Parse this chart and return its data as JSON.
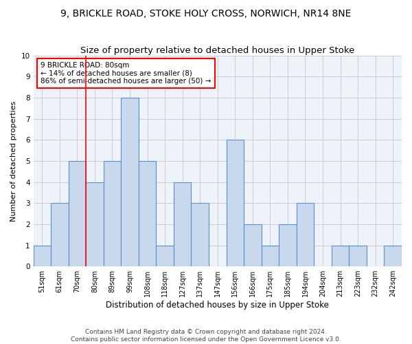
{
  "title1": "9, BRICKLE ROAD, STOKE HOLY CROSS, NORWICH, NR14 8NE",
  "title2": "Size of property relative to detached houses in Upper Stoke",
  "xlabel": "Distribution of detached houses by size in Upper Stoke",
  "ylabel": "Number of detached properties",
  "categories": [
    "51sqm",
    "61sqm",
    "70sqm",
    "80sqm",
    "89sqm",
    "99sqm",
    "108sqm",
    "118sqm",
    "127sqm",
    "137sqm",
    "147sqm",
    "156sqm",
    "166sqm",
    "175sqm",
    "185sqm",
    "194sqm",
    "204sqm",
    "213sqm",
    "223sqm",
    "232sqm",
    "242sqm"
  ],
  "values": [
    1,
    3,
    5,
    4,
    5,
    8,
    5,
    1,
    4,
    3,
    0,
    6,
    2,
    1,
    2,
    3,
    0,
    1,
    1,
    0,
    1
  ],
  "bar_color": "#c9d9ed",
  "bar_edge_color": "#5b8fc9",
  "annotation_text": "9 BRICKLE ROAD: 80sqm\n← 14% of detached houses are smaller (8)\n86% of semi-detached houses are larger (50) →",
  "annotation_box_color": "white",
  "annotation_box_edge_color": "red",
  "vline_color": "red",
  "ylim": [
    0,
    10
  ],
  "yticks": [
    0,
    1,
    2,
    3,
    4,
    5,
    6,
    7,
    8,
    9,
    10
  ],
  "footer1": "Contains HM Land Registry data © Crown copyright and database right 2024.",
  "footer2": "Contains public sector information licensed under the Open Government Licence v3.0.",
  "title1_fontsize": 10,
  "title2_fontsize": 9.5,
  "xlabel_fontsize": 8.5,
  "ylabel_fontsize": 8,
  "tick_fontsize": 7,
  "footer_fontsize": 6.5,
  "annotation_fontsize": 7.5,
  "grid_color": "#cccccc",
  "background_color": "#eef2f9"
}
